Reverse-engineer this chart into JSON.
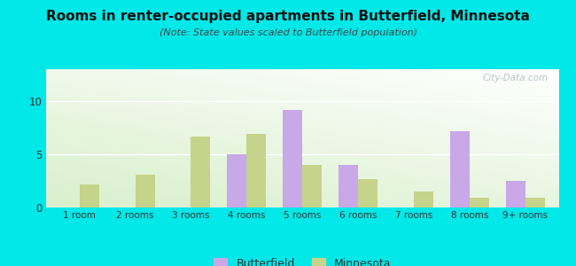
{
  "title": "Rooms in renter-occupied apartments in Butterfield, Minnesota",
  "subtitle": "(Note: State values scaled to Butterfield population)",
  "categories": [
    "1 room",
    "2 rooms",
    "3 rooms",
    "4 rooms",
    "5 rooms",
    "6 rooms",
    "7 rooms",
    "8 rooms",
    "9+ rooms"
  ],
  "butterfield": [
    0,
    0,
    0,
    5,
    9.2,
    4,
    0,
    7.2,
    2.5
  ],
  "minnesota": [
    2.2,
    3.1,
    6.7,
    6.9,
    4.0,
    2.7,
    1.5,
    0.9,
    0.9
  ],
  "butterfield_color": "#c9a8e8",
  "minnesota_color": "#c5d48a",
  "background_color": "#00e8e8",
  "ylim": [
    0,
    13
  ],
  "yticks": [
    0,
    5,
    10
  ],
  "bar_width": 0.35,
  "legend_butterfield": "Butterfield",
  "legend_minnesota": "Minnesota",
  "watermark": "City-Data.com",
  "title_fontsize": 11,
  "subtitle_fontsize": 8
}
